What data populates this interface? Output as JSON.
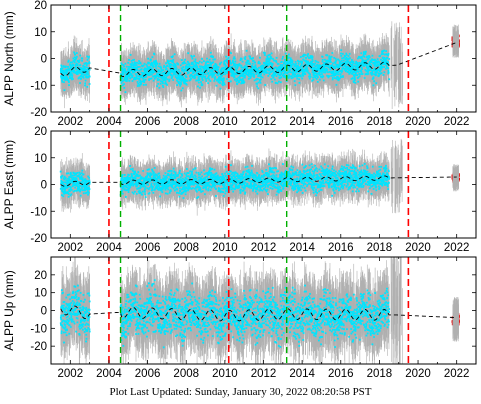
{
  "footer": "Plot Last Updated:   Sunday, January 30, 2022 08:20:58 PST",
  "colors": {
    "observation": "#00e5ff",
    "error_bar": "#b0b0b0",
    "model": "#000000",
    "recent": "#e00000",
    "red_line": "#ff0000",
    "green_line": "#00b000"
  },
  "chart_data": [
    {
      "type": "scatter",
      "ylabel": "ALPP North (mm)",
      "xlim": [
        2001.0,
        2023.0
      ],
      "ylim": [
        -20,
        20
      ],
      "x_ticks": [
        2002,
        2004,
        2006,
        2008,
        2010,
        2012,
        2014,
        2016,
        2018,
        2020,
        2022
      ],
      "y_ticks": [
        -20,
        -10,
        0,
        10,
        20
      ],
      "red_lines": [
        2004.0,
        2010.2,
        2019.5
      ],
      "green_lines": [
        2004.6,
        2013.2
      ],
      "segments": [
        [
          2001.5,
          2003.0
        ],
        [
          2004.6,
          2018.5
        ]
      ],
      "scatter_halfwidth": 3.5,
      "error_halfwidth": 7,
      "model": {
        "x": [
          2001.5,
          2003.0,
          2004.6,
          2010.2,
          2013.2,
          2018.9,
          2022.0
        ],
        "y": [
          -5.5,
          -3.5,
          -5.5,
          -4.5,
          -3.8,
          -2.5,
          6.0
        ]
      },
      "seasonal_amplitude": 1.3,
      "recent": {
        "x": [
          2021.8,
          2022.1
        ],
        "center": 6.5,
        "spread": 4
      }
    },
    {
      "type": "scatter",
      "ylabel": "ALPP East (mm)",
      "xlim": [
        2001.0,
        2023.0
      ],
      "ylim": [
        -20,
        20
      ],
      "x_ticks": [
        2002,
        2004,
        2006,
        2008,
        2010,
        2012,
        2014,
        2016,
        2018,
        2020,
        2022
      ],
      "y_ticks": [
        -20,
        -10,
        0,
        10,
        20
      ],
      "red_lines": [
        2004.0,
        2010.2,
        2019.5
      ],
      "green_lines": [
        2004.6,
        2013.2
      ],
      "segments": [
        [
          2001.5,
          2003.0
        ],
        [
          2004.6,
          2018.5
        ]
      ],
      "scatter_halfwidth": 3.2,
      "error_halfwidth": 6,
      "model": {
        "x": [
          2001.5,
          2003.0,
          2004.6,
          2010.2,
          2013.2,
          2018.9,
          2022.0
        ],
        "y": [
          0.0,
          0.8,
          0.8,
          1.2,
          1.8,
          2.5,
          2.8
        ]
      },
      "seasonal_amplitude": 0.8,
      "recent": {
        "x": [
          2021.8,
          2022.1
        ],
        "center": 2.5,
        "spread": 3
      }
    },
    {
      "type": "scatter",
      "ylabel": "ALPP Up (mm)",
      "xlim": [
        2001.0,
        2023.0
      ],
      "ylim": [
        -30,
        30
      ],
      "x_ticks": [
        2002,
        2004,
        2006,
        2008,
        2010,
        2012,
        2014,
        2016,
        2018,
        2020,
        2022
      ],
      "y_ticks": [
        -20,
        -10,
        0,
        10,
        20
      ],
      "red_lines": [
        2004.0,
        2010.2,
        2019.5
      ],
      "green_lines": [
        2004.6,
        2013.2
      ],
      "segments": [
        [
          2001.5,
          2003.0
        ],
        [
          2004.6,
          2018.5
        ]
      ],
      "scatter_halfwidth": 9,
      "error_halfwidth": 16,
      "model": {
        "x": [
          2001.5,
          2003.0,
          2004.6,
          2010.2,
          2013.2,
          2018.9,
          2022.0
        ],
        "y": [
          1.0,
          -2.0,
          -1.0,
          -3.0,
          -2.0,
          -2.5,
          -4.0
        ]
      },
      "seasonal_amplitude": 3.0,
      "recent": {
        "x": [
          2021.8,
          2022.1
        ],
        "center": -5.0,
        "spread": 6
      }
    }
  ]
}
